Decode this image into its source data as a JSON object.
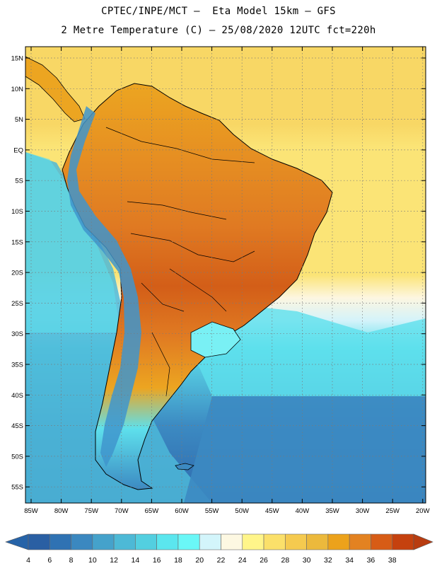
{
  "header": {
    "title_line1": "CPTEC/INPE/MCT —  Eta Model 15km — GFS",
    "title_line2": "2 Metre Temperature (C) — 25/08/2020 12UTC fct=220h"
  },
  "axes": {
    "lat_labels": [
      "15N",
      "10N",
      "5N",
      "EQ",
      "5S",
      "10S",
      "15S",
      "20S",
      "25S",
      "30S",
      "35S",
      "40S",
      "45S",
      "50S",
      "55S"
    ],
    "lon_labels": [
      "85W",
      "80W",
      "75W",
      "70W",
      "65W",
      "60W",
      "55W",
      "50W",
      "45W",
      "40W",
      "35W",
      "30W",
      "25W",
      "20W"
    ]
  },
  "colorbar": {
    "labels": [
      "4",
      "6",
      "8",
      "10",
      "12",
      "14",
      "16",
      "18",
      "20",
      "22",
      "24",
      "26",
      "28",
      "30",
      "32",
      "34",
      "36",
      "38"
    ],
    "colors": [
      "#2a5fa3",
      "#2f72b3",
      "#3b88c0",
      "#45a2cb",
      "#4db9d6",
      "#53cfe0",
      "#5be6ee",
      "#6af7f7",
      "#d3f5fb",
      "#fdf8e2",
      "#fff58a",
      "#fbe06a",
      "#f5ca4f",
      "#ecb93c",
      "#eca21b",
      "#e38221",
      "#d75c16",
      "#c5410e"
    ],
    "low_color": "#2663a8",
    "high_color": "#b83c10"
  },
  "map_colors": {
    "ocean_cold": "#2e68ad",
    "ocean_mid": "#3c8ac2",
    "ocean_cool": "#4eb8d8",
    "ocean_cyan": "#5ee0ec",
    "ocean_aqua": "#79f0f4",
    "ocean_pale": "#d4f3fa",
    "ocean_cream": "#fdf6e0",
    "ocean_warm": "#fbe476",
    "ocean_yellow": "#f8d765",
    "land_warm": "#eca521",
    "land_hot": "#e07a22",
    "land_vhot": "#d35e18",
    "andes": "#3f95cc"
  }
}
